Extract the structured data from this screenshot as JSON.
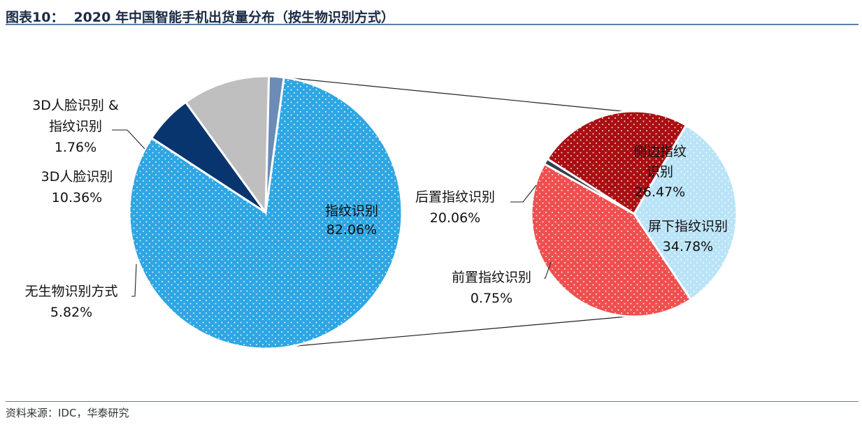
{
  "header": {
    "figure_number": "图表10：",
    "title": "2020 年中国智能手机出货量分布（按生物识别方式）"
  },
  "footer": {
    "source": "资料来源：IDC，华泰研究"
  },
  "chart_data": [
    {
      "type": "pie",
      "slices": [
        {
          "name": "指纹识别",
          "value": 82.06,
          "label": "82.06%",
          "color": "#2ea6e3",
          "label_lines": [
            "指纹识别"
          ]
        },
        {
          "name": "无生物识别方式",
          "value": 5.82,
          "label": "5.82%",
          "color": "#08356e",
          "label_lines": [
            "无生物识别方式"
          ]
        },
        {
          "name": "3D人脸识别",
          "value": 10.36,
          "label": "10.36%",
          "color": "#bfbfbf",
          "label_lines": [
            "3D人脸识别"
          ]
        },
        {
          "name": "3D人脸识别 & 指纹识别",
          "value": 1.76,
          "label": "1.76%",
          "color": "#6a8cb6",
          "label_lines": [
            "3D人脸识别 &",
            "指纹识别"
          ]
        }
      ]
    },
    {
      "type": "pie",
      "slices": [
        {
          "name": "侧边指纹识别",
          "value": 26.47,
          "label": "26.47%",
          "color": "#b9e3f7",
          "label_lines": [
            "侧边指纹",
            "识别"
          ]
        },
        {
          "name": "屏下指纹识别",
          "value": 34.78,
          "label": "34.78%",
          "color": "#ef4f4f",
          "label_lines": [
            "屏下指纹识别"
          ]
        },
        {
          "name": "前置指纹识别",
          "value": 0.75,
          "label": "0.75%",
          "color": "#333f4f",
          "label_lines": [
            "前置指纹识别"
          ]
        },
        {
          "name": "后置指纹识别",
          "value": 20.06,
          "label": "20.06%",
          "color": "#a90f12",
          "label_lines": [
            "后置指纹识别"
          ]
        }
      ]
    }
  ]
}
